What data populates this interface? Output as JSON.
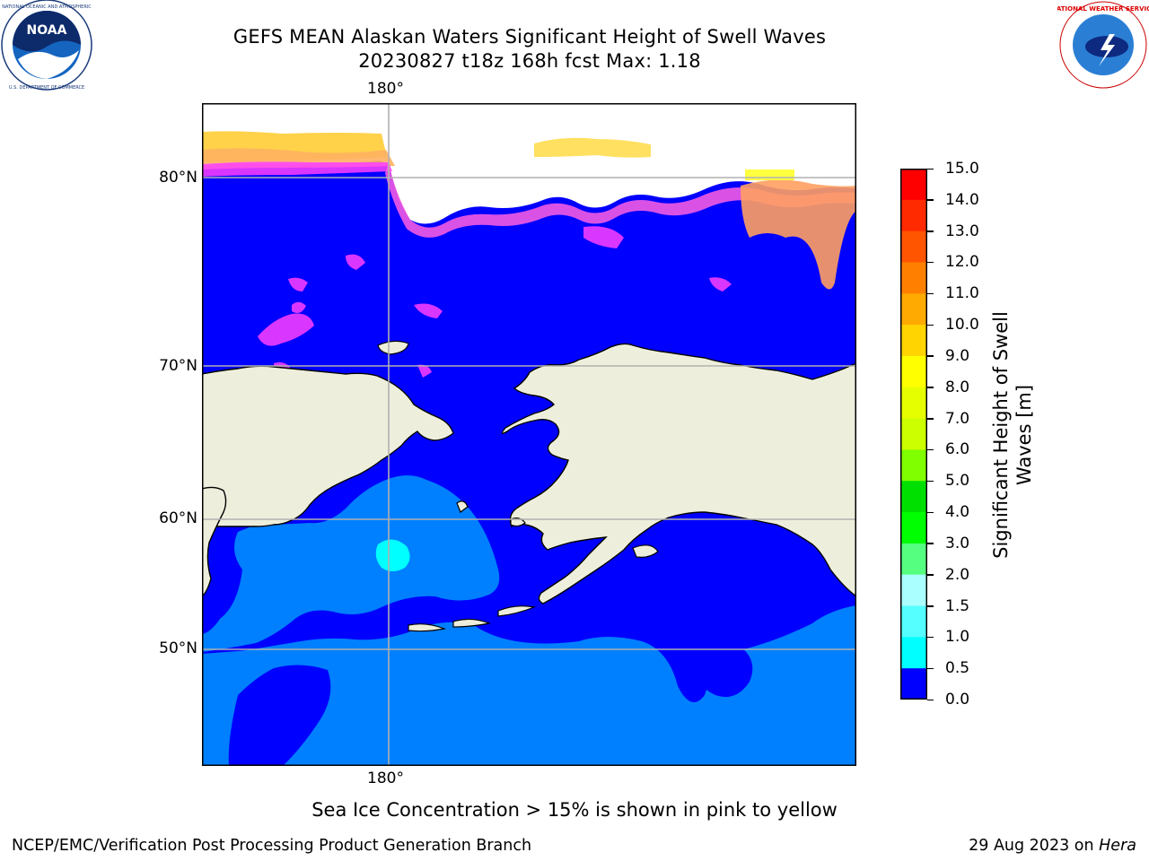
{
  "header": {
    "title_line1": "GEFS MEAN Alaskan Waters Significant Height of Swell Waves",
    "title_line2": "20230827 t18z 168h fcst   Max: 1.18"
  },
  "logos": {
    "left": {
      "name": "noaa-logo-icon",
      "text": "NOAA",
      "ring_text": "NATIONAL OCEANIC AND ATMOSPHERIC ADMINISTRATION · U.S. DEPARTMENT OF COMMERCE"
    },
    "right": {
      "name": "nws-logo-icon",
      "ring_text": "NATIONAL WEATHER SERVICE"
    }
  },
  "map": {
    "lon_label_top": "180°",
    "lon_label_bottom": "180°",
    "lat_labels": [
      "80°N",
      "70°N",
      "60°N",
      "50°N"
    ],
    "colors": {
      "ocean_low": "#0000ff",
      "ocean_mid": "#0080ff",
      "ocean_high": "#00ffff",
      "land": "#eeeedd",
      "ice_edge": "#ff40ff",
      "ice_mid": "#ffb060",
      "ice_high": "#ffff00",
      "grid": "#b0b0b0"
    }
  },
  "colorbar": {
    "label_line1": "Significant Height of Swell",
    "label_line2": "Waves [m]",
    "ticks": [
      "15.0",
      "14.0",
      "13.0",
      "12.0",
      "11.0",
      "10.0",
      "9.0",
      "8.0",
      "7.0",
      "6.0",
      "5.0",
      "4.0",
      "3.0",
      "2.0",
      "1.5",
      "1.0",
      "0.5",
      "0.0"
    ],
    "colors": [
      "#ff0000",
      "#ff2a00",
      "#ff5500",
      "#ff8000",
      "#ffaa00",
      "#ffd400",
      "#ffff00",
      "#e6ff00",
      "#ccff00",
      "#80ff00",
      "#00e000",
      "#00ff00",
      "#55ff80",
      "#aaffff",
      "#55ffff",
      "#00ffff",
      "#0080ff",
      "#0000ff"
    ]
  },
  "note": "Sea Ice Concentration > 15% is shown in pink to yellow",
  "footer": {
    "left": "NCEP/EMC/Verification Post Processing Product Generation Branch",
    "right_prefix": "29 Aug 2023 on ",
    "right_host": "Hera"
  }
}
